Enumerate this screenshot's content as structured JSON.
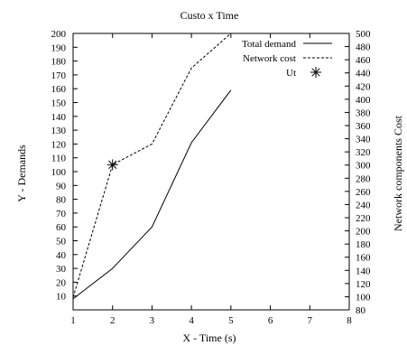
{
  "chart_data": {
    "type": "line",
    "title": "Custo x Time",
    "xlabel": "X - Time (s)",
    "ylabel": "Y - Demands",
    "y2label": "Network components Cost",
    "xlim": [
      1,
      8
    ],
    "ylim": [
      0,
      200
    ],
    "y2lim": [
      80,
      500
    ],
    "x_ticks": [
      1,
      2,
      3,
      4,
      5,
      6,
      7,
      8
    ],
    "y_ticks": [
      10,
      20,
      30,
      40,
      50,
      60,
      70,
      80,
      90,
      100,
      110,
      120,
      130,
      140,
      150,
      160,
      170,
      180,
      190,
      200
    ],
    "y2_ticks": [
      80,
      100,
      120,
      140,
      160,
      180,
      200,
      220,
      240,
      260,
      280,
      300,
      320,
      340,
      360,
      380,
      400,
      420,
      440,
      460,
      480,
      500
    ],
    "grid": false,
    "legend_position": "top-right",
    "series": [
      {
        "name": "Total demand",
        "axis": "left",
        "style": "solid",
        "x": [
          1,
          2,
          3,
          4,
          5
        ],
        "y": [
          8,
          30,
          60,
          121,
          159
        ]
      },
      {
        "name": "Network cost",
        "axis": "left",
        "style": "dashed",
        "x": [
          1,
          2,
          3,
          4,
          5
        ],
        "y": [
          9,
          105,
          120,
          175,
          200
        ]
      },
      {
        "name": "Ut",
        "axis": "left",
        "style": "marker",
        "marker": "asterisk",
        "x": [
          2
        ],
        "y": [
          105
        ]
      }
    ]
  }
}
